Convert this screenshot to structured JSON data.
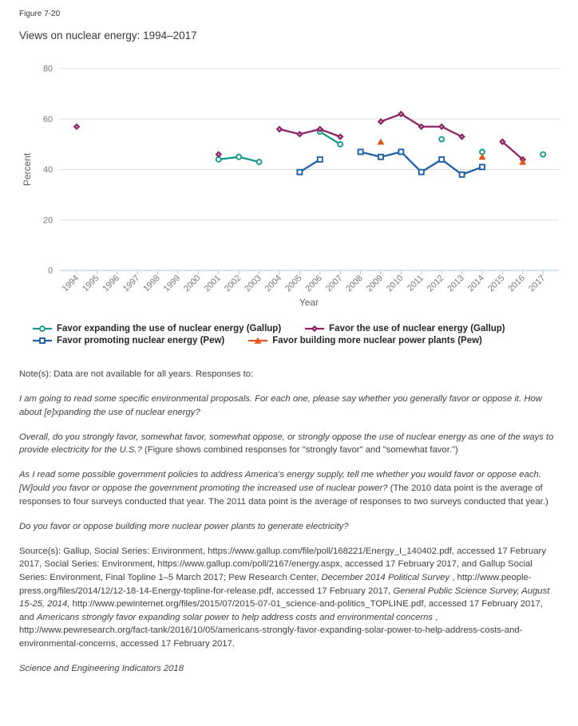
{
  "figure_label": "Figure 7-20",
  "chart_data": {
    "type": "line",
    "title": "Views on nuclear energy: 1994–2017",
    "xlabel": "Year",
    "ylabel": "Percent",
    "ylim": [
      0,
      80
    ],
    "yticks": [
      0,
      20,
      40,
      60,
      80
    ],
    "xticks": [
      1994,
      1995,
      1996,
      1997,
      1998,
      1999,
      2000,
      2001,
      2002,
      2003,
      2004,
      2005,
      2006,
      2007,
      2008,
      2009,
      2010,
      2011,
      2012,
      2013,
      2014,
      2015,
      2016,
      2017
    ],
    "grid": "horizontal",
    "legend_position": "bottom",
    "series": [
      {
        "id": "expanding-gallup",
        "name": "Favor expanding the use of nuclear energy (Gallup)",
        "color": "#13998b",
        "marker": "circle",
        "segments": [
          [
            [
              2001,
              44
            ],
            [
              2002,
              45
            ],
            [
              2003,
              43
            ]
          ],
          [
            [
              2006,
              55
            ],
            [
              2007,
              50
            ]
          ],
          [
            [
              2012,
              52
            ]
          ],
          [
            [
              2014,
              47
            ]
          ],
          [
            [
              2017,
              46
            ]
          ]
        ]
      },
      {
        "id": "use-gallup",
        "name": "Favor the use of nuclear energy (Gallup)",
        "color": "#8e2464",
        "marker": "diamond",
        "segments": [
          [
            [
              1994,
              57
            ]
          ],
          [
            [
              2001,
              46
            ]
          ],
          [
            [
              2004,
              56
            ],
            [
              2005,
              54
            ],
            [
              2006,
              56
            ],
            [
              2007,
              53
            ]
          ],
          [
            [
              2009,
              59
            ],
            [
              2010,
              62
            ],
            [
              2011,
              57
            ],
            [
              2012,
              57
            ],
            [
              2013,
              53
            ]
          ],
          [
            [
              2015,
              51
            ],
            [
              2016,
              44
            ]
          ]
        ]
      },
      {
        "id": "promoting-pew",
        "name": "Favor promoting nuclear energy (Pew)",
        "color": "#1d5fa8",
        "marker": "square",
        "segments": [
          [
            [
              2005,
              39
            ],
            [
              2006,
              44
            ]
          ],
          [
            [
              2008,
              47
            ],
            [
              2009,
              45
            ],
            [
              2010,
              47
            ],
            [
              2011,
              39
            ],
            [
              2012,
              44
            ],
            [
              2013,
              38
            ],
            [
              2014,
              41
            ]
          ]
        ]
      },
      {
        "id": "building-pew",
        "name": "Favor building more nuclear power plants (Pew)",
        "color": "#e2581c",
        "marker": "triangle",
        "segments": [
          [
            [
              2009,
              51
            ]
          ],
          [
            [
              2014,
              45
            ]
          ],
          [
            [
              2016,
              43
            ]
          ]
        ]
      }
    ]
  },
  "paragraphs": [
    {
      "name": "note-intro",
      "segments": [
        {
          "t": "Note(s): Data are not available for all years. Responses to:",
          "i": false
        }
      ]
    },
    {
      "name": "question-expanding",
      "segments": [
        {
          "t": "I am going to read some specific environmental proposals. For each one, please say whether you generally favor or oppose it. How about [e]xpanding the use of nuclear energy?",
          "i": true
        }
      ]
    },
    {
      "name": "question-overall",
      "segments": [
        {
          "t": "Overall, do you strongly favor, somewhat favor, somewhat oppose, or strongly oppose the use of nuclear energy as one of the ways to provide electricity for the U.S.?",
          "i": true
        },
        {
          "t": " (Figure shows combined responses for \"strongly favor\" and \"somewhat favor.\")",
          "i": false
        }
      ]
    },
    {
      "name": "question-promoting",
      "segments": [
        {
          "t": "As I read some possible government policies to address America's energy supply, tell me whether you would favor or oppose each. [W]ould you favor or oppose the government promoting the increased use of nuclear power?",
          "i": true
        },
        {
          "t": "   (The 2010 data point is the average of responses to four surveys conducted that year. The 2011 data point is the average of responses to two surveys conducted that year.)",
          "i": false
        }
      ]
    },
    {
      "name": "question-building",
      "segments": [
        {
          "t": "Do you favor or oppose building more nuclear power plants to generate electricity?",
          "i": true
        }
      ]
    },
    {
      "name": "sources",
      "segments": [
        {
          "t": "Source(s): Gallup, Social Series: Environment, https://www.gallup.com/file/poll/168221/Energy_I_140402.pdf, accessed 17 February 2017, Social Series: Environment, https://www.gallup.com/poll/2167/energy.aspx, accessed 17 February 2017, and Gallup Social Series: Environment, Final Topline 1–5 March 2017; Pew Research Center, ",
          "i": false
        },
        {
          "t": "December 2014 Political Survey",
          "i": true
        },
        {
          "t": " , http://www.people-press.org/files/2014/12/12-18-14-Energy-topline-for-release.pdf, accessed 17 February 2017, ",
          "i": false
        },
        {
          "t": "General Public Science Survey, August 15-25, 2014,",
          "i": true
        },
        {
          "t": " http://www.pewinternet.org/files/2015/07/2015-07-01_science-and-politics_TOPLINE.pdf, accessed 17 February 2017, and ",
          "i": false
        },
        {
          "t": "Americans strongly favor expanding solar power to help address costs and environmental concerns",
          "i": true
        },
        {
          "t": " , http://www.pewresearch.org/fact-tank/2016/10/05/americans-strongly-favor-expanding-solar-power-to-help-address-costs-and-environmental-concerns, accessed 17 February 2017.",
          "i": false
        }
      ]
    },
    {
      "name": "attribution",
      "segments": [
        {
          "t": "Science and Engineering Indicators 2018",
          "i": true
        }
      ]
    }
  ]
}
